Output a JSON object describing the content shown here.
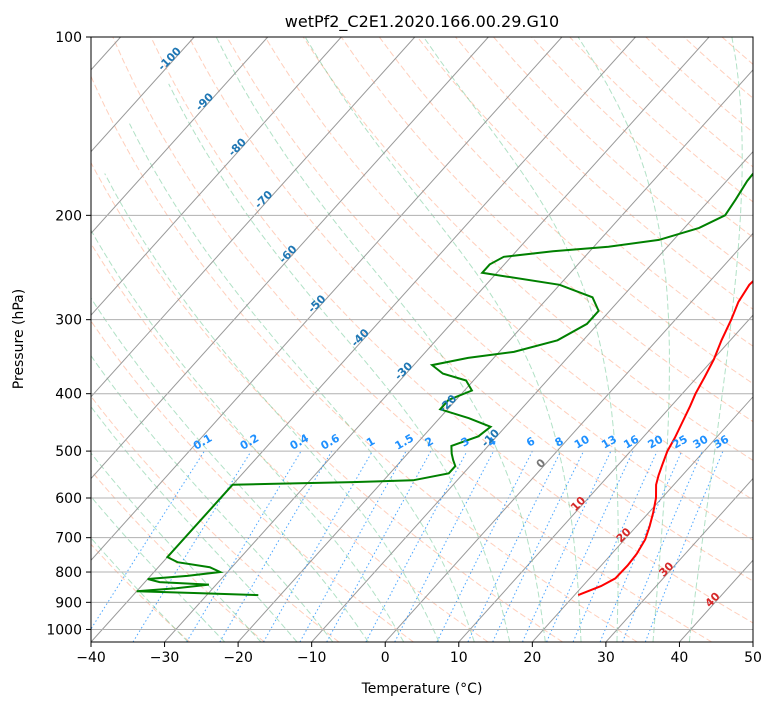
{
  "chart_data": {
    "type": "line",
    "title": "wetPf2_C2E1.2020.166.00.29.G10",
    "xlabel": "Temperature (°C)",
    "ylabel": "Pressure (hPa)",
    "xlim": [
      -40,
      50
    ],
    "ylim": [
      1050,
      100
    ],
    "y_scale": "log",
    "x_ticks": [
      -40,
      -30,
      -20,
      -10,
      0,
      10,
      20,
      30,
      40,
      50
    ],
    "y_ticks": [
      100,
      200,
      300,
      400,
      500,
      600,
      700,
      800,
      900,
      1000
    ],
    "grid": true,
    "series": [
      {
        "color": "#ff0000",
        "points": [
          [
            20.5,
            875
          ],
          [
            22.5,
            845
          ],
          [
            23.5,
            820
          ],
          [
            23.6,
            780
          ],
          [
            23.4,
            745
          ],
          [
            22.8,
            705
          ],
          [
            21.8,
            670
          ],
          [
            20.6,
            635
          ],
          [
            19.2,
            600
          ],
          [
            17.6,
            570
          ],
          [
            16.8,
            550
          ],
          [
            15.9,
            525
          ],
          [
            15.0,
            500
          ],
          [
            14.4,
            475
          ],
          [
            13.6,
            450
          ],
          [
            12.6,
            420
          ],
          [
            11.8,
            400
          ],
          [
            11.0,
            375
          ],
          [
            10.1,
            350
          ],
          [
            8.8,
            325
          ],
          [
            7.6,
            300
          ],
          [
            6.4,
            280
          ],
          [
            5.8,
            262
          ],
          [
            6.0,
            250
          ],
          [
            6.2,
            240
          ],
          [
            6.0,
            230
          ],
          [
            5.4,
            215
          ],
          [
            4.8,
            200
          ],
          [
            4.2,
            185
          ],
          [
            3.7,
            170
          ],
          [
            3.4,
            155
          ],
          [
            3.1,
            143
          ],
          [
            3.2,
            135
          ],
          [
            4.0,
            128
          ],
          [
            5.6,
            122
          ],
          [
            7.0,
            116
          ],
          [
            7.8,
            110
          ],
          [
            8.4,
            105
          ],
          [
            9.0,
            100
          ]
        ]
      },
      {
        "color": "#008000",
        "points": [
          [
            -23,
            875
          ],
          [
            -32,
            868
          ],
          [
            -40,
            862
          ],
          [
            -35,
            852
          ],
          [
            -31,
            840
          ],
          [
            -38,
            832
          ],
          [
            -40,
            822
          ],
          [
            -35,
            812
          ],
          [
            -31,
            800
          ],
          [
            -33,
            785
          ],
          [
            -38,
            770
          ],
          [
            -40,
            755
          ],
          [
            -40,
            570
          ],
          [
            -35,
            568
          ],
          [
            -24,
            564
          ],
          [
            -16,
            560
          ],
          [
            -12,
            545
          ],
          [
            -12,
            530
          ],
          [
            -13,
            518
          ],
          [
            -14,
            505
          ],
          [
            -15,
            490
          ],
          [
            -12.5,
            472
          ],
          [
            -12,
            455
          ],
          [
            -16,
            440
          ],
          [
            -21,
            425
          ],
          [
            -21,
            410
          ],
          [
            -19,
            395
          ],
          [
            -21,
            380
          ],
          [
            -25,
            370
          ],
          [
            -27.5,
            358
          ],
          [
            -23.5,
            348
          ],
          [
            -18,
            340
          ],
          [
            -13.5,
            325
          ],
          [
            -11.5,
            305
          ],
          [
            -11.5,
            290
          ],
          [
            -14,
            275
          ],
          [
            -20,
            262
          ],
          [
            -32,
            250
          ],
          [
            -32,
            242
          ],
          [
            -31,
            235
          ],
          [
            -25,
            230
          ],
          [
            -18,
            226
          ],
          [
            -12,
            220
          ],
          [
            -8,
            210
          ],
          [
            -6,
            200
          ],
          [
            -6.5,
            188
          ],
          [
            -7.2,
            175
          ],
          [
            -7.4,
            165
          ],
          [
            -7.0,
            158
          ],
          [
            -5.8,
            150
          ],
          [
            -4.7,
            140
          ],
          [
            -4.5,
            130
          ],
          [
            -4.4,
            120
          ],
          [
            -4.3,
            113
          ],
          [
            -3.6,
            108
          ],
          [
            -2.0,
            104
          ],
          [
            0.2,
            100
          ]
        ]
      }
    ],
    "dry_adiabat_labels": [
      "-100",
      "-90",
      "-80",
      "-70",
      "-60",
      "-50",
      "-40",
      "-30",
      "-20",
      "-10",
      "0",
      "10",
      "20",
      "30",
      "40"
    ],
    "mixing_ratio_labels": [
      "0.1",
      "0.2",
      "0.4",
      "0.6",
      "1",
      "1.5",
      "2",
      "3",
      "4",
      "6",
      "8",
      "10",
      "13",
      "16",
      "20",
      "25",
      "30",
      "36"
    ]
  }
}
